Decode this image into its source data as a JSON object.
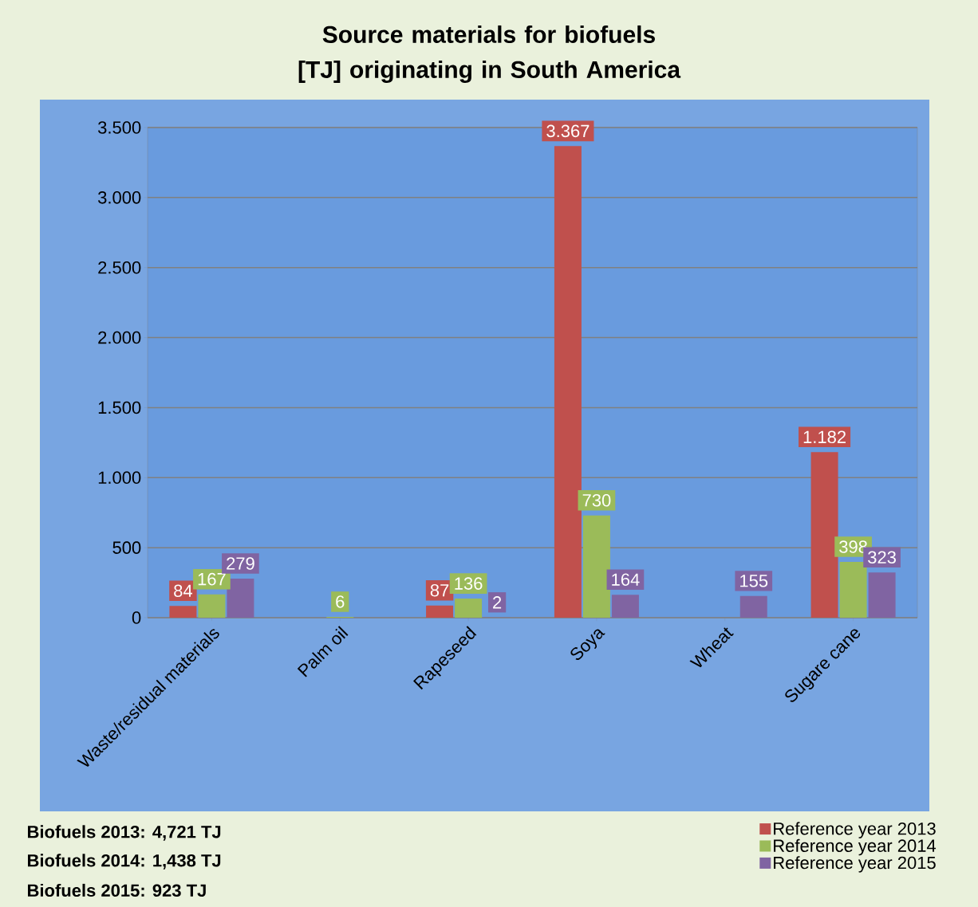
{
  "chart_data": {
    "type": "bar",
    "title": "Source materials for biofuels [TJ] originating in South America",
    "categories": [
      "Waste/residual materials",
      "Palm oil",
      "Rapeseed",
      "Soya",
      "Wheat",
      "Sugare cane"
    ],
    "series": [
      {
        "name": "Reference year 2013",
        "color": "#c0504d",
        "values": [
          84,
          null,
          87,
          3367,
          null,
          1182
        ],
        "value_labels": [
          "84",
          null,
          "87",
          "3.367",
          null,
          "1.182"
        ]
      },
      {
        "name": "Reference year 2014",
        "color": "#9bbb59",
        "values": [
          167,
          6,
          136,
          730,
          null,
          398
        ],
        "value_labels": [
          "167",
          "6",
          "136",
          "730",
          null,
          "398"
        ]
      },
      {
        "name": "Reference year 2015",
        "color": "#8064a2",
        "values": [
          279,
          null,
          2,
          164,
          155,
          323
        ],
        "value_labels": [
          "279",
          null,
          "2",
          "164",
          "155",
          "323"
        ]
      }
    ],
    "ylim": [
      0,
      3500
    ],
    "yticks": [
      {
        "value": 0,
        "label": "0"
      },
      {
        "value": 500,
        "label": "500"
      },
      {
        "value": 1000,
        "label": "1.000"
      },
      {
        "value": 1500,
        "label": "1.500"
      },
      {
        "value": 2000,
        "label": "2.000"
      },
      {
        "value": 2500,
        "label": "2.500"
      },
      {
        "value": 3000,
        "label": "3.000"
      },
      {
        "value": 3500,
        "label": "3.500"
      }
    ],
    "grid": "y",
    "legend": "bottom right",
    "annotations": [
      "Biofuels 2013: 4,721 TJ",
      "Biofuels 2014: 1,438 TJ",
      "Biofuels 2015: 923 TJ"
    ]
  }
}
